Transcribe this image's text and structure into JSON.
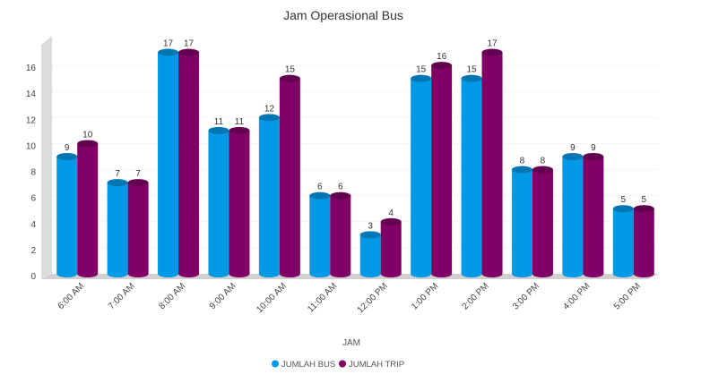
{
  "chart_data": {
    "type": "bar",
    "title": "Jam Operasional Bus",
    "xlabel": "JAM",
    "ylabel": "",
    "ylim": [
      0,
      18
    ],
    "yticks": [
      0,
      2,
      4,
      6,
      8,
      10,
      12,
      14,
      16
    ],
    "grid": true,
    "legend_position": "bottom-center",
    "categories": [
      "6:00 AM",
      "7:00 AM",
      "8:00 AM",
      "9:00 AM",
      "10:00 AM",
      "11:00 AM",
      "12:00 PM",
      "1:00 PM",
      "2:00 PM",
      "3:00 PM",
      "4:00 PM",
      "5:00 PM"
    ],
    "series": [
      {
        "name": "JUMLAH BUS",
        "color": "#0099e6",
        "values": [
          9,
          7,
          17,
          11,
          12,
          6,
          3,
          15,
          15,
          8,
          9,
          5
        ]
      },
      {
        "name": "JUMLAH TRIP",
        "color": "#800066",
        "values": [
          10,
          7,
          17,
          11,
          15,
          6,
          4,
          16,
          17,
          8,
          9,
          5
        ]
      }
    ]
  }
}
